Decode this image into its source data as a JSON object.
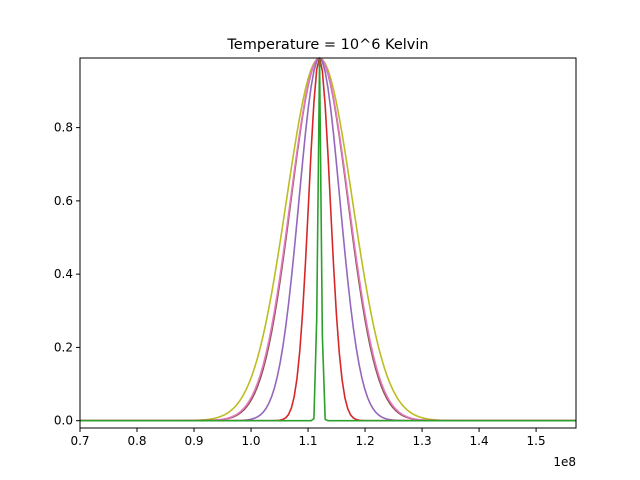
{
  "chart_data": {
    "type": "line",
    "title": "Temperature = 10^6 Kelvin",
    "xlabel": "",
    "ylabel": "",
    "x_offset_label": "1e8",
    "xlim": [
      0.7,
      1.57
    ],
    "ylim": [
      -0.02,
      0.99
    ],
    "xticks": [
      0.7,
      0.8,
      0.9,
      1.0,
      1.1,
      1.2,
      1.3,
      1.4,
      1.5
    ],
    "xtick_labels": [
      "0.7",
      "0.8",
      "0.9",
      "1.0",
      "1.1",
      "1.2",
      "1.3",
      "1.4",
      "1.5"
    ],
    "yticks": [
      0.0,
      0.2,
      0.4,
      0.6,
      0.8
    ],
    "ytick_labels": [
      "0.0",
      "0.2",
      "0.4",
      "0.6",
      "0.8"
    ],
    "grid": false,
    "legend": "none",
    "peak_x": 1.12,
    "peak_y": 0.99,
    "series": [
      {
        "color": "#bcbd22",
        "sigma": 0.058,
        "x_range": [
          0.7,
          1.57
        ]
      },
      {
        "color": "#8c564b",
        "sigma": 0.05,
        "x_range": [
          0.7,
          1.57
        ]
      },
      {
        "color": "#e377c2",
        "sigma": 0.051,
        "x_range": [
          0.7,
          1.57
        ]
      },
      {
        "color": "#9467bd",
        "sigma": 0.036,
        "x_range": [
          0.7,
          1.57
        ]
      },
      {
        "color": "#d62728",
        "sigma": 0.019,
        "x_range": [
          0.7,
          1.57
        ]
      },
      {
        "color": "#2ca02c",
        "sigma": 0.003,
        "x_range": [
          0.7,
          1.57
        ]
      }
    ]
  }
}
